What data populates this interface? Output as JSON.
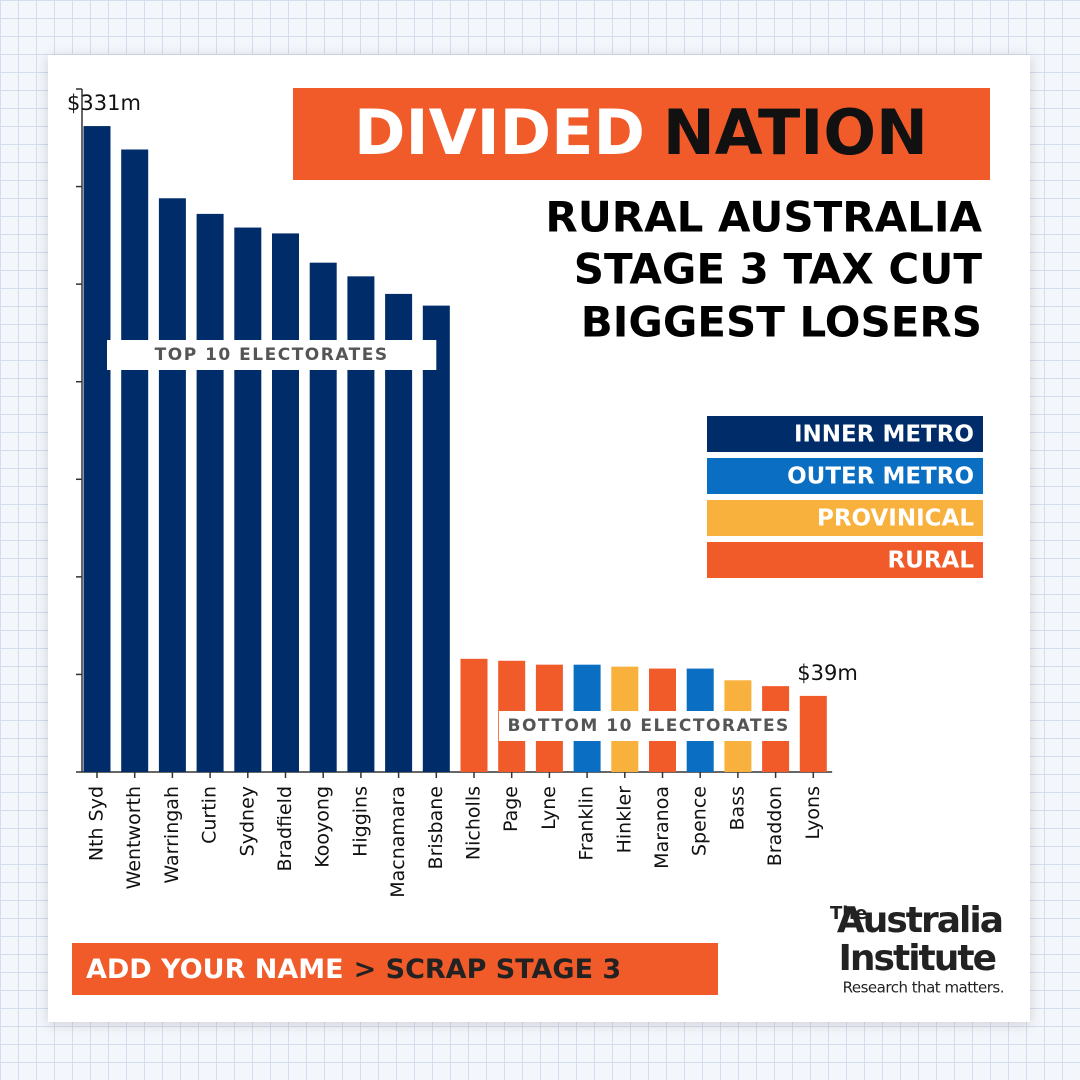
{
  "chart_data": {
    "type": "bar",
    "title": {
      "part1": "DIVIDED",
      "part2": "NATION"
    },
    "subtitle": [
      "RURAL AUSTRALIA",
      "STAGE 3 TAX CUT",
      "BIGGEST LOSERS"
    ],
    "categories": [
      "Nth Syd",
      "Wentworth",
      "Warringah",
      "Curtin",
      "Sydney",
      "Bradfield",
      "Kooyong",
      "Higgins",
      "Macnamara",
      "Brisbane",
      "Nicholls",
      "Page",
      "Lyne",
      "Franklin",
      "Hinkler",
      "Maranoa",
      "Spence",
      "Bass",
      "Braddon",
      "Lyons"
    ],
    "series": [
      {
        "name": "INNER METRO",
        "color": "#002d6a",
        "values": [
          331,
          319,
          294,
          286,
          279,
          276,
          261,
          254,
          245,
          239,
          null,
          null,
          null,
          null,
          null,
          null,
          null,
          null,
          null,
          null
        ],
        "value_labels": [
          "$331m",
          null,
          null,
          null,
          null,
          null,
          null,
          null,
          null,
          null,
          null,
          null,
          null,
          null,
          null,
          null,
          null,
          null,
          null,
          null
        ]
      },
      {
        "name": "OUTER METRO",
        "color": "#0a6fc2",
        "values": [
          null,
          null,
          null,
          null,
          null,
          null,
          null,
          null,
          null,
          null,
          null,
          null,
          null,
          55,
          null,
          null,
          53,
          null,
          null,
          null
        ]
      },
      {
        "name": "PROVINICAL",
        "color": "#f9b13d",
        "values": [
          null,
          null,
          null,
          null,
          null,
          null,
          null,
          null,
          null,
          null,
          null,
          null,
          null,
          null,
          54,
          null,
          null,
          47,
          null,
          null
        ]
      },
      {
        "name": "RURAL",
        "color": "#f15a29",
        "values": [
          null,
          null,
          null,
          null,
          null,
          null,
          null,
          null,
          null,
          null,
          58,
          57,
          55,
          null,
          null,
          53,
          null,
          null,
          44,
          39
        ],
        "value_labels": [
          null,
          null,
          null,
          null,
          null,
          null,
          null,
          null,
          null,
          null,
          null,
          null,
          null,
          null,
          null,
          null,
          null,
          null,
          null,
          "$39m"
        ]
      }
    ],
    "ylim": [
      0,
      350
    ],
    "yticks": [
      0,
      50,
      100,
      150,
      200,
      250,
      300,
      350
    ],
    "annotations": [
      "TOP 10 ELECTORATES",
      "BOTTOM 10 ELECTORATES"
    ],
    "call_to_action": {
      "part1": "ADD YOUR NAME",
      "part2": "> SCRAP STAGE 3"
    },
    "logo": {
      "small": "The",
      "line1": "Australia",
      "line2": "Institute",
      "tagline": "Research that matters."
    }
  }
}
